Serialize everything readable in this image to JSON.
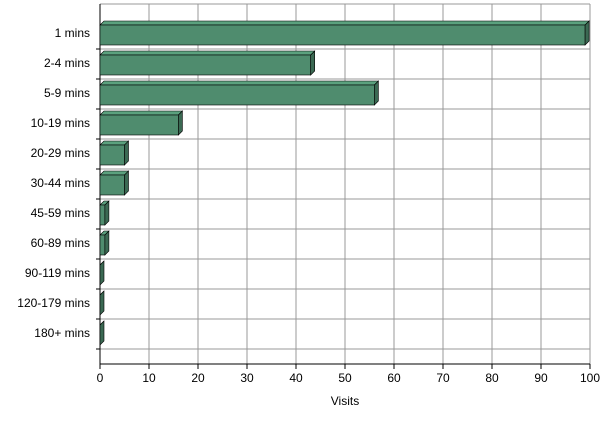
{
  "chart_data": {
    "type": "bar",
    "orientation": "horizontal",
    "x_label": "Visits",
    "categories": [
      "1 mins",
      "2-4 mins",
      "5-9 mins",
      "10-19 mins",
      "20-29 mins",
      "30-44 mins",
      "45-59 mins",
      "60-89 mins",
      "90-119 mins",
      "120-179 mins",
      "180+ mins"
    ],
    "values": [
      99,
      43,
      56,
      16,
      5,
      5,
      1,
      1,
      0,
      0,
      0
    ],
    "color": "#4f8c6e",
    "xlim": [
      0,
      100
    ],
    "xticks": [
      0,
      10,
      20,
      30,
      40,
      50,
      60,
      70,
      80,
      90,
      100
    ],
    "grid": true
  }
}
